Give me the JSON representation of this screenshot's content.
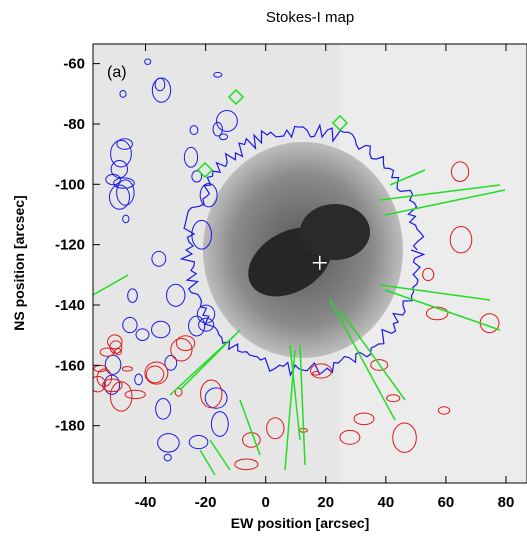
{
  "chart_data": {
    "type": "image",
    "title": "Stokes-I map",
    "panel_label": "(a)",
    "x_label": "EW position [arcsec]",
    "y_label": "NS position [arcsec]",
    "xlim": [
      -57.5,
      87
    ],
    "ylim": [
      -199,
      -53.5
    ],
    "xticks": [
      -40,
      -20,
      0,
      20,
      40,
      60,
      80
    ],
    "yticks": [
      -60,
      -80,
      -100,
      -120,
      -140,
      -160,
      -180
    ],
    "marker": {
      "x": 18,
      "y": -126,
      "color": "#ffffff"
    }
  }
}
